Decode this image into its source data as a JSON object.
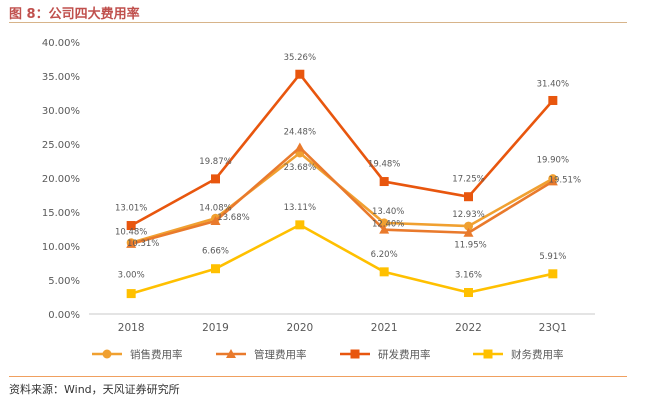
{
  "figure_title": "图 8：公司四大费用率",
  "source_note": "资料来源：Wind，天风证券研究所",
  "colors": {
    "sales": "#f0a030",
    "admin": "#e97a2c",
    "rd": "#e8560e",
    "finance": "#ffc000",
    "axis": "#c8c8c8",
    "text": "#595959"
  },
  "chart_data": {
    "type": "line",
    "title": "",
    "xlabel": "",
    "ylabel": "",
    "categories": [
      "2018",
      "2019",
      "2020",
      "2021",
      "2022",
      "23Q1"
    ],
    "y_ticks": [
      "0.00%",
      "5.00%",
      "10.00%",
      "15.00%",
      "20.00%",
      "25.00%",
      "30.00%",
      "35.00%",
      "40.00%"
    ],
    "ylim": [
      0,
      40
    ],
    "grid": false,
    "legend_position": "bottom",
    "series": [
      {
        "key": "sales",
        "name": "销售费用率",
        "marker": "circle",
        "values": [
          10.48,
          14.08,
          23.68,
          13.4,
          12.93,
          19.9
        ],
        "labels": [
          "10.48%",
          "14.08%",
          "23.68%",
          "13.40%",
          "12.93%",
          "19.90%"
        ]
      },
      {
        "key": "admin",
        "name": "管理费用率",
        "marker": "triangle",
        "values": [
          10.31,
          13.68,
          24.48,
          12.4,
          11.95,
          19.51
        ],
        "labels": [
          "10.31%",
          "13.68%",
          "24.48%",
          "12.40%",
          "11.95%",
          "19.51%"
        ]
      },
      {
        "key": "rd",
        "name": "研发费用率",
        "marker": "square",
        "values": [
          13.01,
          19.87,
          35.26,
          19.48,
          17.25,
          31.4
        ],
        "labels": [
          "13.01%",
          "19.87%",
          "35.26%",
          "19.48%",
          "17.25%",
          "31.40%"
        ]
      },
      {
        "key": "finance",
        "name": "财务费用率",
        "marker": "square",
        "values": [
          3.0,
          6.66,
          13.11,
          6.2,
          3.16,
          5.91
        ],
        "labels": [
          "3.00%",
          "6.66%",
          "13.11%",
          "6.20%",
          "3.16%",
          "5.91%"
        ]
      }
    ]
  }
}
